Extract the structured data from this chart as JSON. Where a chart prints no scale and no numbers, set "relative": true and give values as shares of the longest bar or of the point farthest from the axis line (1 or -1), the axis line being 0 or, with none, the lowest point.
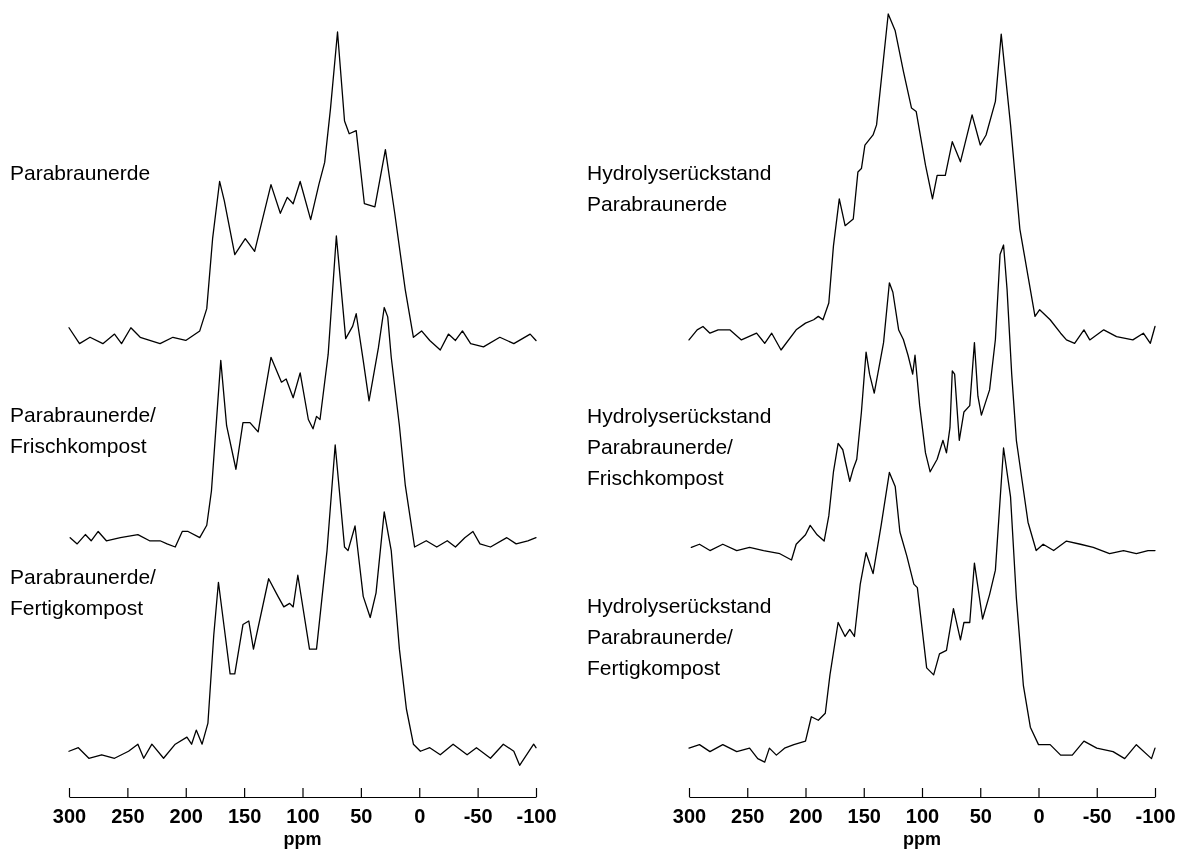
{
  "chart_data": [
    {
      "type": "line",
      "relative": true,
      "title": "Parabraunerde",
      "xlim": [
        300,
        -100
      ],
      "tick_labels": false,
      "color": "#000000",
      "x": [
        300,
        291,
        282,
        271,
        261,
        255,
        247,
        239,
        222,
        211,
        200,
        188,
        182,
        177,
        171,
        167,
        158,
        149,
        141,
        127,
        119,
        113,
        108,
        102,
        93,
        86,
        81,
        76,
        70,
        64,
        60,
        54,
        47,
        38,
        29,
        21,
        12,
        5,
        -2,
        -9,
        -18,
        -25,
        -31,
        -37,
        -44,
        -55,
        -69,
        -81,
        -95,
        -100
      ],
      "values": [
        0.07,
        0.02,
        0.04,
        0.02,
        0.05,
        0.02,
        0.07,
        0.04,
        0.02,
        0.04,
        0.03,
        0.06,
        0.13,
        0.35,
        0.53,
        0.47,
        0.3,
        0.35,
        0.31,
        0.52,
        0.43,
        0.48,
        0.46,
        0.53,
        0.41,
        0.52,
        0.59,
        0.76,
        1,
        0.72,
        0.68,
        0.69,
        0.46,
        0.45,
        0.63,
        0.43,
        0.19,
        0.04,
        0.06,
        0.03,
        0,
        0.05,
        0.03,
        0.06,
        0.02,
        0.01,
        0.04,
        0.02,
        0.05,
        0.03
      ]
    },
    {
      "type": "line",
      "relative": true,
      "title": "Parabraunerde/\nFrischkompost",
      "xlim": [
        300,
        -100
      ],
      "tick_labels": false,
      "color": "#000000",
      "x": [
        299,
        293,
        286,
        281,
        275,
        268,
        256,
        241,
        231,
        222,
        216,
        209,
        203,
        198,
        188,
        182,
        178,
        170,
        165,
        157,
        151,
        145,
        138,
        127,
        118,
        114,
        108,
        102,
        95,
        91,
        88,
        85,
        78,
        71,
        63,
        57,
        54,
        48,
        43,
        35,
        30,
        27,
        24,
        17,
        12,
        4,
        -6,
        -15,
        -24,
        -31,
        -39,
        -46,
        -52,
        -61,
        -75,
        -83,
        -93,
        -100
      ],
      "values": [
        0.03,
        0.01,
        0.04,
        0.02,
        0.05,
        0.02,
        0.03,
        0.04,
        0.02,
        0.02,
        0.01,
        0,
        0.05,
        0.05,
        0.03,
        0.07,
        0.18,
        0.6,
        0.39,
        0.25,
        0.4,
        0.4,
        0.37,
        0.61,
        0.53,
        0.54,
        0.48,
        0.56,
        0.41,
        0.38,
        0.42,
        0.41,
        0.62,
        1,
        0.67,
        0.71,
        0.75,
        0.6,
        0.47,
        0.64,
        0.77,
        0.74,
        0.61,
        0.39,
        0.2,
        0,
        0.02,
        0,
        0.02,
        0,
        0.03,
        0.05,
        0.01,
        0,
        0.03,
        0.01,
        0.02,
        0.03
      ]
    },
    {
      "type": "line",
      "relative": true,
      "title": "Parabraunerde/\nFertigkompost",
      "xlabel": "ppm",
      "xlim": [
        300,
        -100
      ],
      "xticks": [
        300,
        250,
        200,
        150,
        100,
        50,
        0,
        -50,
        -100
      ],
      "tick_labels": "x",
      "color": "#000000",
      "x": [
        300,
        292,
        283,
        272,
        261,
        249,
        241,
        236,
        229,
        219,
        209,
        199,
        195,
        191,
        186,
        181,
        176,
        172,
        167,
        162,
        158,
        151,
        146,
        142,
        129,
        121,
        116,
        111,
        108,
        104,
        94,
        88,
        79,
        72,
        64,
        61,
        55,
        48,
        42,
        37,
        30,
        24,
        17,
        11,
        5,
        -1,
        -9,
        -18,
        -29,
        -41,
        -49,
        -61,
        -72,
        -81,
        -86,
        -98,
        -100
      ],
      "values": [
        0.13,
        0.14,
        0.11,
        0.12,
        0.11,
        0.13,
        0.15,
        0.11,
        0.15,
        0.11,
        0.15,
        0.17,
        0.15,
        0.19,
        0.15,
        0.21,
        0.46,
        0.61,
        0.48,
        0.35,
        0.35,
        0.49,
        0.5,
        0.42,
        0.62,
        0.57,
        0.54,
        0.55,
        0.54,
        0.63,
        0.42,
        0.42,
        0.7,
        1,
        0.71,
        0.7,
        0.77,
        0.57,
        0.51,
        0.58,
        0.81,
        0.7,
        0.42,
        0.25,
        0.15,
        0.13,
        0.14,
        0.12,
        0.15,
        0.12,
        0.14,
        0.11,
        0.15,
        0.13,
        0.09,
        0.15,
        0.14
      ]
    },
    {
      "type": "line",
      "relative": true,
      "title": "Hydrolyserückstand\nParabraunerde",
      "xlim": [
        300,
        -100
      ],
      "tick_labels": false,
      "color": "#000000",
      "x": [
        300,
        293,
        288,
        282,
        275,
        265,
        255,
        242,
        235,
        229,
        221,
        208,
        200,
        193,
        189,
        185,
        180,
        176,
        171,
        166,
        159,
        155,
        152,
        149,
        142,
        139,
        129,
        123,
        116,
        109,
        105,
        97,
        91,
        87,
        80,
        74,
        67,
        57,
        50,
        45,
        37,
        32,
        24,
        16,
        9,
        3,
        -1,
        -10,
        -19,
        -24,
        -31,
        -39,
        -44,
        -56,
        -67,
        -81,
        -90,
        -96,
        -100
      ],
      "values": [
        0.03,
        0.06,
        0.07,
        0.05,
        0.06,
        0.06,
        0.03,
        0.05,
        0.02,
        0.05,
        0,
        0.06,
        0.08,
        0.09,
        0.1,
        0.09,
        0.14,
        0.31,
        0.45,
        0.37,
        0.39,
        0.53,
        0.54,
        0.61,
        0.64,
        0.67,
        1,
        0.95,
        0.83,
        0.72,
        0.71,
        0.55,
        0.45,
        0.52,
        0.52,
        0.62,
        0.56,
        0.7,
        0.61,
        0.64,
        0.74,
        0.94,
        0.67,
        0.36,
        0.22,
        0.1,
        0.12,
        0.09,
        0.05,
        0.03,
        0.02,
        0.06,
        0.03,
        0.06,
        0.04,
        0.03,
        0.05,
        0.02,
        0.07
      ]
    },
    {
      "type": "line",
      "relative": true,
      "title": "Hydrolyserückstand\nParabraunerde/\nFrischkompost",
      "xlim": [
        300,
        -100
      ],
      "tick_labels": false,
      "color": "#000000",
      "x": [
        298,
        291,
        282,
        271,
        259,
        248,
        236,
        222,
        212,
        208,
        200,
        196,
        190,
        184,
        180,
        176,
        172,
        168,
        162,
        159,
        156,
        152,
        148,
        145,
        141,
        136,
        133,
        128,
        125,
        120,
        116,
        112,
        108,
        106,
        102,
        97,
        93,
        87,
        82,
        79,
        76,
        74,
        72,
        68,
        64,
        59,
        55,
        52,
        49,
        42,
        37,
        33,
        30,
        27,
        23,
        19,
        14,
        9,
        2,
        -4,
        -13,
        -24,
        -36,
        -47,
        -61,
        -73,
        -84,
        -94,
        -100
      ],
      "values": [
        0.04,
        0.05,
        0.03,
        0.05,
        0.03,
        0.04,
        0.03,
        0.02,
        0,
        0.05,
        0.08,
        0.11,
        0.08,
        0.06,
        0.14,
        0.28,
        0.37,
        0.35,
        0.25,
        0.29,
        0.32,
        0.47,
        0.66,
        0.59,
        0.53,
        0.63,
        0.69,
        0.88,
        0.85,
        0.73,
        0.7,
        0.65,
        0.59,
        0.65,
        0.49,
        0.34,
        0.28,
        0.32,
        0.38,
        0.34,
        0.42,
        0.6,
        0.59,
        0.38,
        0.47,
        0.49,
        0.69,
        0.52,
        0.46,
        0.54,
        0.7,
        0.97,
        1,
        0.86,
        0.59,
        0.38,
        0.25,
        0.12,
        0.03,
        0.05,
        0.03,
        0.06,
        0.05,
        0.04,
        0.02,
        0.03,
        0.02,
        0.03,
        0.03
      ]
    },
    {
      "type": "line",
      "relative": true,
      "title": "Hydrolyserückstand\nParabraunerde/\nFertigkompost",
      "xlabel": "ppm",
      "xlim": [
        300,
        -100
      ],
      "xticks": [
        300,
        250,
        200,
        150,
        100,
        50,
        0,
        -50,
        -100
      ],
      "tick_labels": "x",
      "color": "#000000",
      "x": [
        300,
        291,
        282,
        271,
        259,
        248,
        241,
        235,
        231,
        225,
        218,
        210,
        200,
        195,
        189,
        183,
        179,
        172,
        166,
        162,
        158,
        153,
        148,
        142,
        135,
        128,
        123,
        119,
        113,
        107,
        104,
        96,
        90,
        85,
        79,
        73,
        67,
        64,
        59,
        55,
        48,
        42,
        37,
        30,
        24,
        19,
        13,
        7,
        0,
        -10,
        -19,
        -29,
        -39,
        -50,
        -64,
        -74,
        -84,
        -97,
        -100
      ],
      "values": [
        0.14,
        0.15,
        0.13,
        0.15,
        0.13,
        0.14,
        0.11,
        0.1,
        0.14,
        0.12,
        0.14,
        0.15,
        0.16,
        0.23,
        0.22,
        0.24,
        0.35,
        0.5,
        0.46,
        0.48,
        0.46,
        0.61,
        0.7,
        0.64,
        0.78,
        0.93,
        0.89,
        0.76,
        0.69,
        0.61,
        0.6,
        0.37,
        0.35,
        0.41,
        0.42,
        0.54,
        0.45,
        0.5,
        0.5,
        0.67,
        0.51,
        0.58,
        0.65,
        1,
        0.86,
        0.57,
        0.32,
        0.2,
        0.15,
        0.15,
        0.12,
        0.12,
        0.16,
        0.14,
        0.13,
        0.11,
        0.15,
        0.11,
        0.14
      ]
    }
  ]
}
